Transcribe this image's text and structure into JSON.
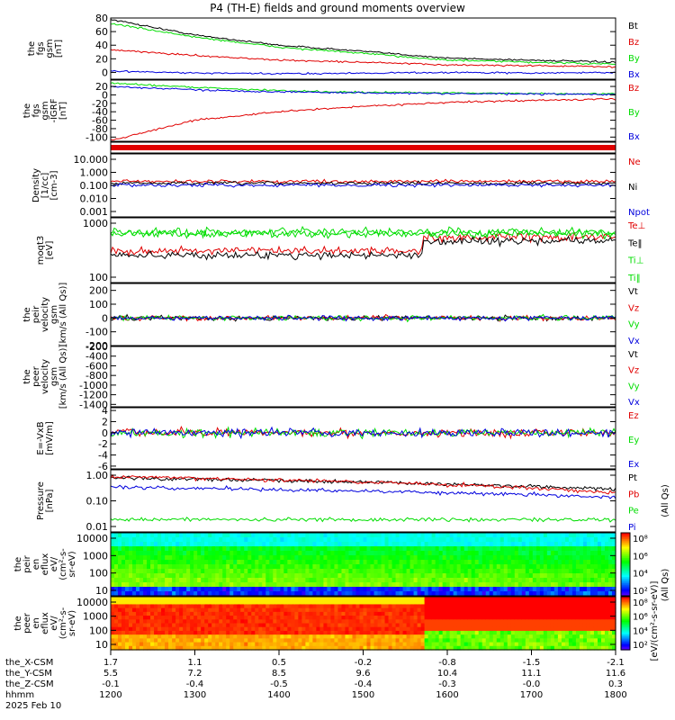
{
  "title": "P4 (TH-E) fields and ground moments overview",
  "colors": {
    "black": "#000000",
    "red": "#e00000",
    "green": "#00dd00",
    "blue": "#0000dd"
  },
  "chart_data": [
    {
      "type": "line",
      "ylabel": [
        "the",
        "fgs",
        "gsm",
        "[nT]"
      ],
      "ylim": [
        -10,
        80
      ],
      "yticks": [
        0,
        20,
        40,
        60,
        80
      ],
      "legend": [
        {
          "name": "Bt",
          "color": "black"
        },
        {
          "name": "Bz",
          "color": "red"
        },
        {
          "name": "By",
          "color": "green"
        },
        {
          "name": "Bx",
          "color": "blue"
        }
      ],
      "x": [
        1200,
        1300,
        1400,
        1500,
        1600,
        1700,
        1800
      ],
      "series": [
        {
          "name": "Bt",
          "color": "black",
          "values": [
            78,
            55,
            40,
            31,
            21,
            18,
            15
          ]
        },
        {
          "name": "Bz",
          "color": "red",
          "values": [
            33,
            25,
            18,
            15,
            11,
            10,
            8
          ]
        },
        {
          "name": "By",
          "color": "green",
          "values": [
            72,
            52,
            37,
            28,
            18,
            15,
            12
          ]
        },
        {
          "name": "Bx",
          "color": "blue",
          "values": [
            2,
            -1,
            -2,
            -1,
            0,
            -1,
            0
          ]
        }
      ]
    },
    {
      "type": "line",
      "ylabel": [
        "the",
        "fgs",
        "gsm",
        "-IGRF",
        "[nT]"
      ],
      "ylim": [
        -110,
        35
      ],
      "yticks": [
        20,
        0,
        -20,
        -40,
        -60,
        -80,
        -100
      ],
      "legend": [
        {
          "name": "Bz",
          "color": "red"
        },
        {
          "name": "By",
          "color": "green"
        },
        {
          "name": "Bx",
          "color": "blue"
        }
      ],
      "x": [
        1200,
        1300,
        1400,
        1500,
        1600,
        1700,
        1800
      ],
      "series": [
        {
          "name": "Bz",
          "color": "red",
          "values": [
            -108,
            -60,
            -40,
            -27,
            -18,
            -13,
            -10
          ]
        },
        {
          "name": "By",
          "color": "green",
          "values": [
            28,
            18,
            10,
            6,
            5,
            3,
            2
          ]
        },
        {
          "name": "Bx",
          "color": "blue",
          "values": [
            20,
            12,
            7,
            5,
            3,
            2,
            1
          ]
        }
      ]
    },
    {
      "type": "log",
      "ylabel": [
        "Density",
        "[1/cc]",
        "[cm-3]"
      ],
      "yticks": [
        "10.000",
        "1.000",
        "0.100",
        "0.010",
        "0.001"
      ],
      "legend": [
        {
          "name": "Ne",
          "color": "red"
        },
        {
          "name": "Ni",
          "color": "black"
        },
        {
          "name": "Npot",
          "color": "blue"
        }
      ]
    },
    {
      "type": "log",
      "ylabel": [
        "moqt3",
        "[eV]"
      ],
      "yticks": [
        "1000",
        "100"
      ],
      "legend": [
        {
          "name": "Te⊥",
          "color": "red"
        },
        {
          "name": "Te‖",
          "color": "black"
        },
        {
          "name": "Ti⊥",
          "color": "green"
        },
        {
          "name": "Ti‖",
          "color": "green"
        }
      ]
    },
    {
      "type": "line",
      "ylabel": [
        "the",
        "peir",
        "velocity",
        "gsm",
        "[km/s (All Qs)]"
      ],
      "ylim": [
        -200,
        250
      ],
      "yticks": [
        200,
        100,
        0,
        -100,
        -200
      ],
      "legend": [
        {
          "name": "Vt",
          "color": "black"
        },
        {
          "name": "Vz",
          "color": "red"
        },
        {
          "name": "Vy",
          "color": "green"
        },
        {
          "name": "Vx",
          "color": "blue"
        }
      ]
    },
    {
      "type": "line",
      "ylabel": [
        "the",
        "peer",
        "velocity",
        "gsm",
        "[km/s (All Qs)]"
      ],
      "ylim": [
        -1450,
        -200
      ],
      "yticks": [
        -200,
        -400,
        -600,
        -800,
        -1000,
        -1200,
        -1400
      ],
      "legend": [
        {
          "name": "Vt",
          "color": "black"
        },
        {
          "name": "Vz",
          "color": "red"
        },
        {
          "name": "Vy",
          "color": "green"
        },
        {
          "name": "Vx",
          "color": "blue"
        }
      ]
    },
    {
      "type": "line",
      "ylabel": [
        "E=-VxB",
        "[mV/m]"
      ],
      "ylim": [
        -6.5,
        4.5
      ],
      "yticks": [
        4,
        2,
        0,
        -2,
        -4,
        -6
      ],
      "legend": [
        {
          "name": "Ez",
          "color": "red"
        },
        {
          "name": "Ey",
          "color": "green"
        },
        {
          "name": "Ex",
          "color": "blue"
        }
      ]
    },
    {
      "type": "log",
      "ylabel": [
        "Pressure",
        "[nPa]"
      ],
      "yticks": [
        "1.00",
        "0.10",
        "0.01"
      ],
      "legend": [
        {
          "name": "Pt",
          "color": "black"
        },
        {
          "name": "Pb",
          "color": "red"
        },
        {
          "name": "Pe",
          "color": "green"
        },
        {
          "name": "Pi",
          "color": "blue"
        }
      ],
      "side_label": "(All Qs)"
    },
    {
      "type": "heatmap",
      "ylabel": [
        "the",
        "peir",
        "en",
        "eflux",
        "eV/",
        "(cm²-s-",
        "sr-eV)"
      ],
      "yticks": [
        "10000",
        "1000",
        "100",
        "10"
      ]
    },
    {
      "type": "heatmap",
      "ylabel": [
        "the",
        "peer",
        "en",
        "eflux",
        "eV/",
        "(cm²-s-",
        "sr-eV)"
      ],
      "yticks": [
        "10000",
        "1000",
        "100",
        "10"
      ]
    }
  ],
  "colorbar": {
    "label": "[eV/(cm²-s-sr-eV)]",
    "side_label": "(All Qs)",
    "ticks_upper": [
      "10⁸",
      "10⁶",
      "10⁴",
      "10²"
    ],
    "ticks_lower": [
      "10⁸",
      "10⁶",
      "10⁴",
      "10²"
    ]
  },
  "xaxis": {
    "row_labels": [
      "the_X-CSM",
      "the_Y-CSM",
      "the_Z-CSM",
      "hhmm",
      "2025 Feb 10"
    ],
    "columns": [
      [
        "1.7",
        "5.5",
        "-0.1",
        "1200"
      ],
      [
        "1.1",
        "7.2",
        "-0.4",
        "1300"
      ],
      [
        "0.5",
        "8.5",
        "-0.5",
        "1400"
      ],
      [
        "-0.2",
        "9.6",
        "-0.4",
        "1500"
      ],
      [
        "-0.8",
        "10.4",
        "-0.3",
        "1600"
      ],
      [
        "-1.5",
        "11.1",
        "-0.0",
        "1700"
      ],
      [
        "-2.1",
        "11.6",
        "0.3",
        "1800"
      ]
    ]
  }
}
